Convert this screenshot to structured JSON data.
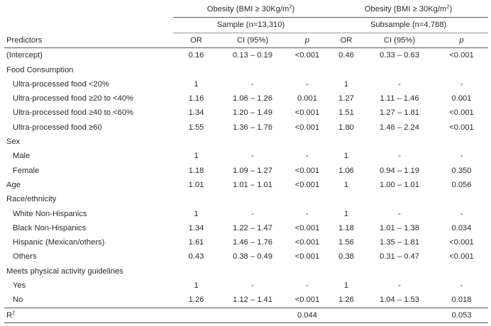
{
  "groups": [
    {
      "title": "Obesity (BMI ≥ 30Kg/m",
      "sup": "2",
      "close": ")",
      "subtitle": "Sample (n=13,310)"
    },
    {
      "title": "Obesity (BMI ≥ 30Kg/m",
      "sup": "2",
      "close": ")",
      "subtitle": "Subsample (n=4,788)"
    }
  ],
  "columns": {
    "predictors": "Predictors",
    "or": "OR",
    "ci": "CI (95%)",
    "p": "p"
  },
  "rows": [
    {
      "label": "(Intercept)",
      "indent": false,
      "or1": "0.16",
      "ci1": "0.13 – 0.19",
      "p1": "<0.001",
      "or2": "0.46",
      "ci2": "0.33 – 0.63",
      "p2": "<0.001"
    },
    {
      "label": "Food Consumption",
      "indent": false,
      "or1": "",
      "ci1": "",
      "p1": "",
      "or2": "",
      "ci2": "",
      "p2": ""
    },
    {
      "label": "Ultra-processed food <20%",
      "indent": true,
      "or1": "1",
      "ci1": "-",
      "p1": "-",
      "or2": "1",
      "ci2": "-",
      "p2": "-"
    },
    {
      "label": "Ultra-processed food ≥20 to <40%",
      "indent": true,
      "or1": "1.16",
      "ci1": "1.06 – 1.26",
      "p1": "0.001",
      "or2": "1.27",
      "ci2": "1.11 – 1.46",
      "p2": "0.001"
    },
    {
      "label": "Ultra-processed food ≥40 to <60%",
      "indent": true,
      "or1": "1.34",
      "ci1": "1.20 – 1.49",
      "p1": "<0.001",
      "or2": "1.51",
      "ci2": "1.27 – 1.81",
      "p2": "<0.001"
    },
    {
      "label": "Ultra-processed food ≥60",
      "indent": true,
      "or1": "1.55",
      "ci1": "1.36 – 1.76",
      "p1": "<0.001",
      "or2": "1.80",
      "ci2": "1.46 – 2.24",
      "p2": "<0.001"
    },
    {
      "label": "Sex",
      "indent": false,
      "or1": "",
      "ci1": "",
      "p1": "",
      "or2": "",
      "ci2": "",
      "p2": ""
    },
    {
      "label": "Male",
      "indent": true,
      "or1": "1",
      "ci1": "-",
      "p1": "-",
      "or2": "1",
      "ci2": "-",
      "p2": "-"
    },
    {
      "label": "Female",
      "indent": true,
      "or1": "1.18",
      "ci1": "1.09 – 1.27",
      "p1": "<0.001",
      "or2": "1.06",
      "ci2": "0.94 – 1.19",
      "p2": "0.350"
    },
    {
      "label": "Age",
      "indent": false,
      "or1": "1.01",
      "ci1": "1.01 – 1.01",
      "p1": "<0.001",
      "or2": "1",
      "ci2": "1.00 – 1.01",
      "p2": "0.056"
    },
    {
      "label": "Race/ethnicity",
      "indent": false,
      "or1": "",
      "ci1": "",
      "p1": "",
      "or2": "",
      "ci2": "",
      "p2": ""
    },
    {
      "label": "White Non-Hispanics",
      "indent": true,
      "or1": "1",
      "ci1": "-",
      "p1": "-",
      "or2": "1",
      "ci2": "-",
      "p2": "-"
    },
    {
      "label": "Black Non-Hispanics",
      "indent": true,
      "or1": "1.34",
      "ci1": "1.22 – 1.47",
      "p1": "<0.001",
      "or2": "1.18",
      "ci2": "1.01 – 1.38",
      "p2": "0.034"
    },
    {
      "label": "Hispanic (Mexican/others)",
      "indent": true,
      "or1": "1.61",
      "ci1": "1.46 – 1.76",
      "p1": "<0.001",
      "or2": "1.56",
      "ci2": "1.35 – 1.81",
      "p2": "<0.001"
    },
    {
      "label": "Others",
      "indent": true,
      "or1": "0.43",
      "ci1": "0.38 – 0.49",
      "p1": "<0.001",
      "or2": "0.38",
      "ci2": "0.31 – 0.47",
      "p2": "<0.001"
    },
    {
      "label": "Meets physical activity guidelines",
      "indent": false,
      "or1": "",
      "ci1": "",
      "p1": "",
      "or2": "",
      "ci2": "",
      "p2": ""
    },
    {
      "label": "Yes",
      "indent": true,
      "or1": "1",
      "ci1": "-",
      "p1": "-",
      "or2": "1",
      "ci2": "-",
      "p2": "-"
    },
    {
      "label": "No",
      "indent": true,
      "or1": "1.26",
      "ci1": "1.12 – 1.41",
      "p1": "<0.001",
      "or2": "1.26",
      "ci2": "1.04 – 1.53",
      "p2": "0.018"
    }
  ],
  "footer": {
    "label": "R",
    "sup": "2",
    "p1": "0.044",
    "p2": "0.053"
  }
}
